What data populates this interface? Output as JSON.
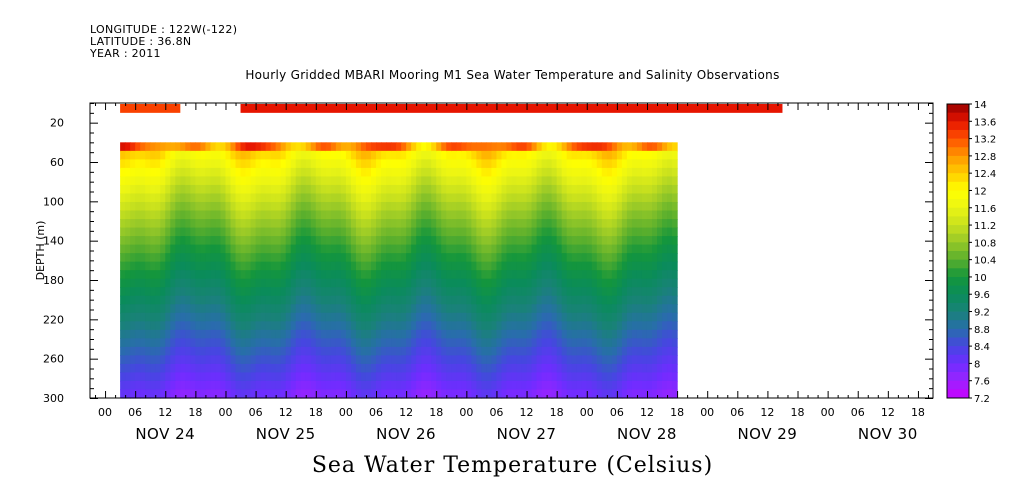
{
  "header": {
    "longitude": "LONGITUDE : 122W(-122)",
    "latitude": "LATITUDE : 36.8N",
    "year": "YEAR : 2011"
  },
  "title": "Hourly Gridded MBARI Mooring M1 Sea Water Temperature and Salinity Observations",
  "bottom_title": "Sea Water Temperature (Celsius)",
  "chart_data": {
    "type": "heatmap",
    "title": "Hourly Gridded MBARI Mooring M1 Sea Water Temperature and Salinity Observations",
    "ylabel": "DEPTH (m)",
    "ylim": [
      300,
      0
    ],
    "y_ticks": [
      20,
      60,
      100,
      140,
      180,
      220,
      260,
      300
    ],
    "x_hour_ticks": [
      "00",
      "06",
      "12",
      "18",
      "00",
      "06",
      "12",
      "18",
      "00",
      "06",
      "12",
      "18",
      "00",
      "06",
      "12",
      "18",
      "00",
      "06",
      "12",
      "18",
      "00",
      "06",
      "12",
      "18",
      "00",
      "06",
      "12",
      "18"
    ],
    "day_labels": [
      "NOV 24",
      "NOV 25",
      "NOV 26",
      "NOV 27",
      "NOV 28",
      "NOV 29",
      "NOV 30"
    ],
    "x_range_hours": [
      -3,
      165
    ],
    "surface_depth": 1,
    "surface_segments": [
      [
        3,
        15,
        13.3
      ],
      [
        27,
        135,
        13.6
      ]
    ],
    "profile_data_range_hours": [
      3,
      114
    ],
    "profile_depth_range": [
      40,
      300
    ],
    "shallow_profile_temperature_approx": 12.4,
    "deep_profile_temperature_approx": 7.8,
    "colorbar": {
      "min": 7.2,
      "max": 14,
      "step": 0.2,
      "labels": [
        "14",
        "13.6",
        "13.2",
        "12.8",
        "12.4",
        "12",
        "11.6",
        "11.2",
        "10.8",
        "10.4",
        "10",
        "9.6",
        "9.2",
        "8.8",
        "8.4",
        "8",
        "7.6",
        "7.2"
      ]
    },
    "units": "Celsius"
  }
}
